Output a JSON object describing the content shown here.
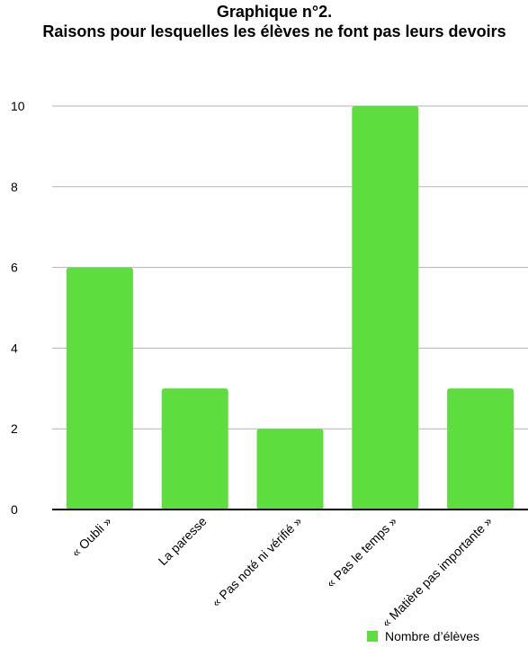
{
  "chart_data": {
    "type": "bar",
    "title": "Graphique n°2.",
    "subtitle": "Raisons pour lesquelles les élèves ne font pas leurs devoirs",
    "categories": [
      "« Oubli »",
      "La paresse",
      "« Pas noté ni vérifié »",
      "« Pas le temps »",
      "« Matière pas importante »"
    ],
    "series": [
      {
        "name": "Nombre d’élèves",
        "values": [
          6,
          3,
          2,
          10,
          3
        ]
      }
    ],
    "ylim": [
      0,
      10
    ],
    "yticks": [
      "0",
      "2",
      "4",
      "6",
      "8",
      "10"
    ],
    "grid": true,
    "legend": "bottom-right",
    "colors": {
      "bar": "#5dde3e",
      "grid": "#b3b3b3",
      "axis": "#000000"
    }
  }
}
